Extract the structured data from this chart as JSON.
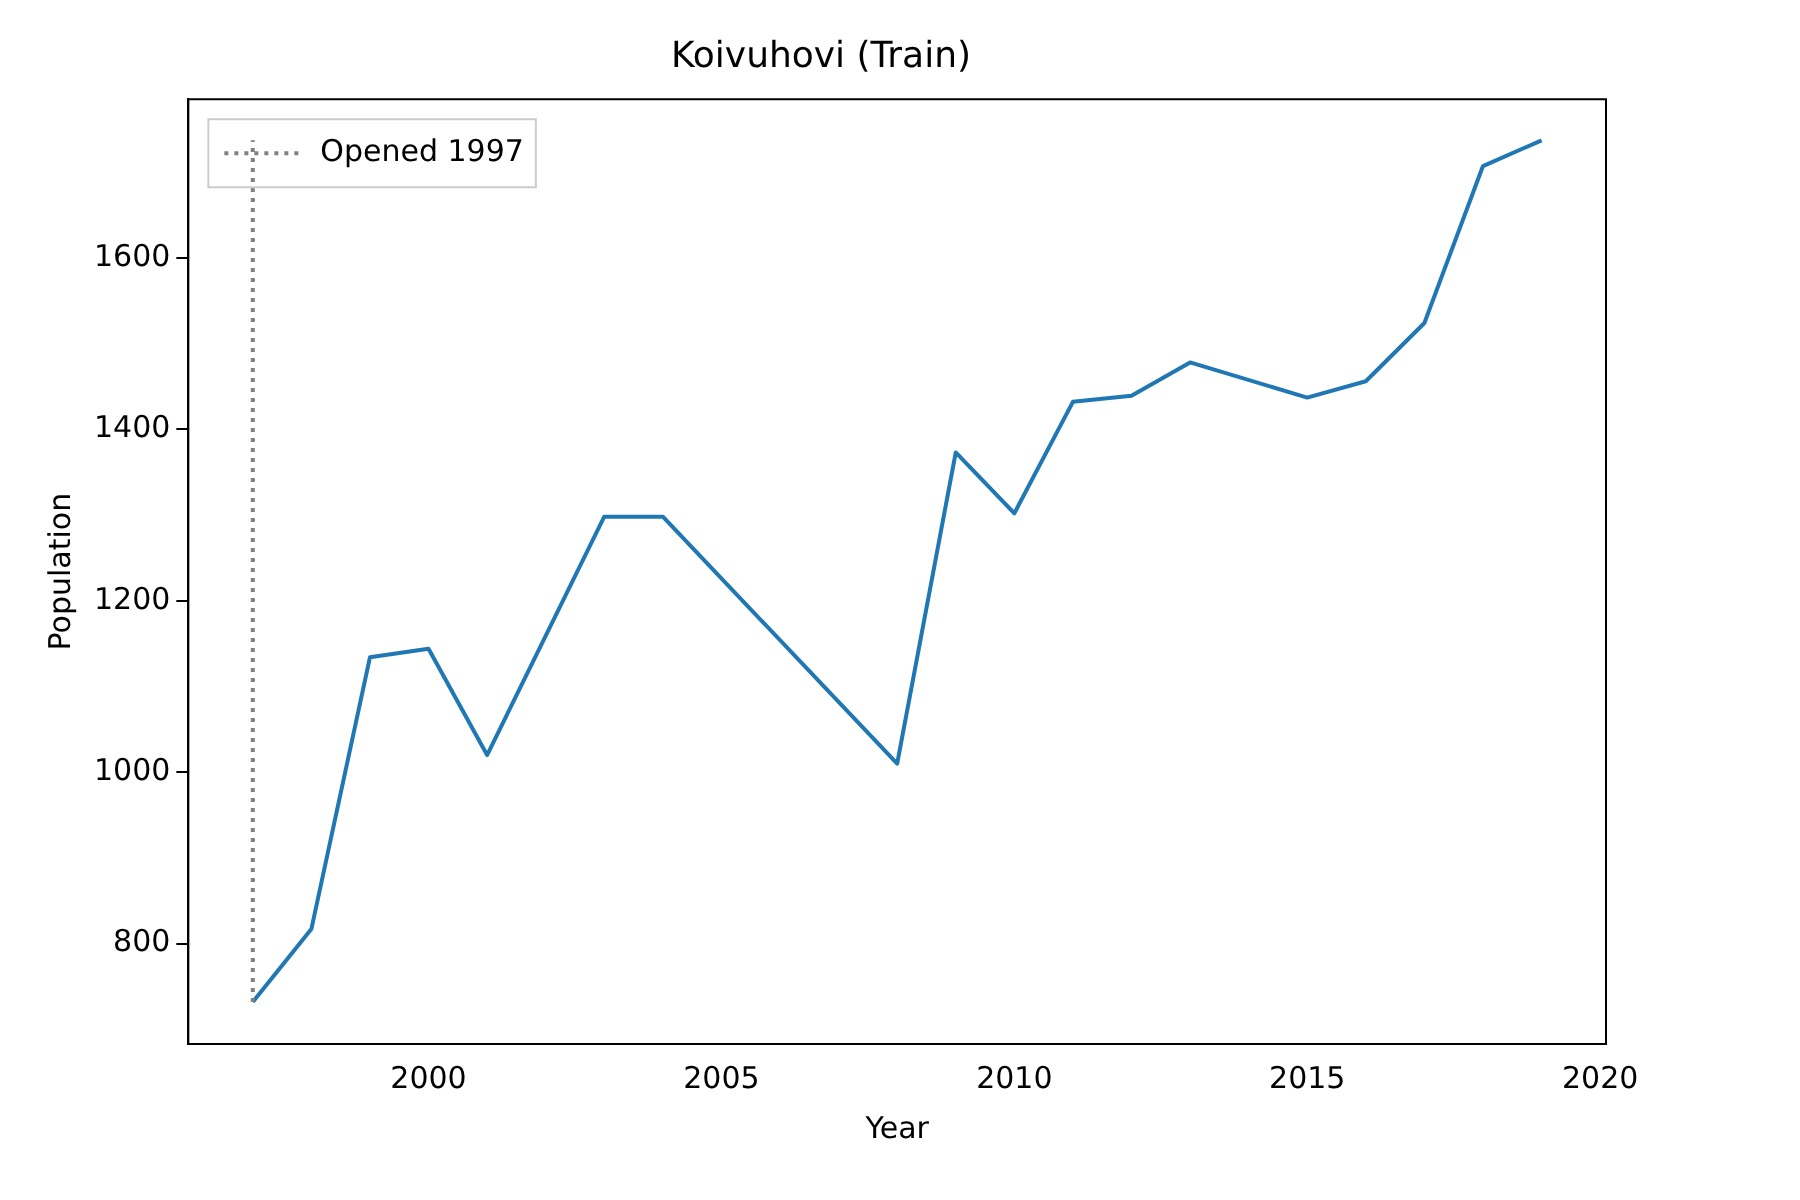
{
  "chart_data": {
    "type": "line",
    "title": "Koivuhovi (Train)",
    "xlabel": "Year",
    "ylabel": "Population",
    "x": [
      1997,
      1998,
      1999,
      2000,
      2001,
      2003,
      2004,
      2008,
      2009,
      2010,
      2011,
      2012,
      2013,
      2015,
      2016,
      2017,
      2018,
      2019
    ],
    "series": [
      {
        "color": "#1f77b4",
        "values": [
          732,
          817,
          1134,
          1144,
          1020,
          1298,
          1298,
          1010,
          1373,
          1302,
          1432,
          1439,
          1478,
          1437,
          1456,
          1524,
          1707,
          1737
        ]
      }
    ],
    "xlim": [
      1995.9,
      2020.1
    ],
    "xticks": [
      2000,
      2005,
      2010,
      2015,
      2020
    ],
    "ylim": [
      683,
      1785
    ],
    "yticks": [
      800,
      1000,
      1200,
      1400,
      1600
    ],
    "ref_lines": [
      {
        "axis": "x",
        "value": 1997,
        "label": "Opened 1997",
        "color": "#808080",
        "line_style": "dotted"
      }
    ],
    "grid": false,
    "legend": "top left"
  }
}
